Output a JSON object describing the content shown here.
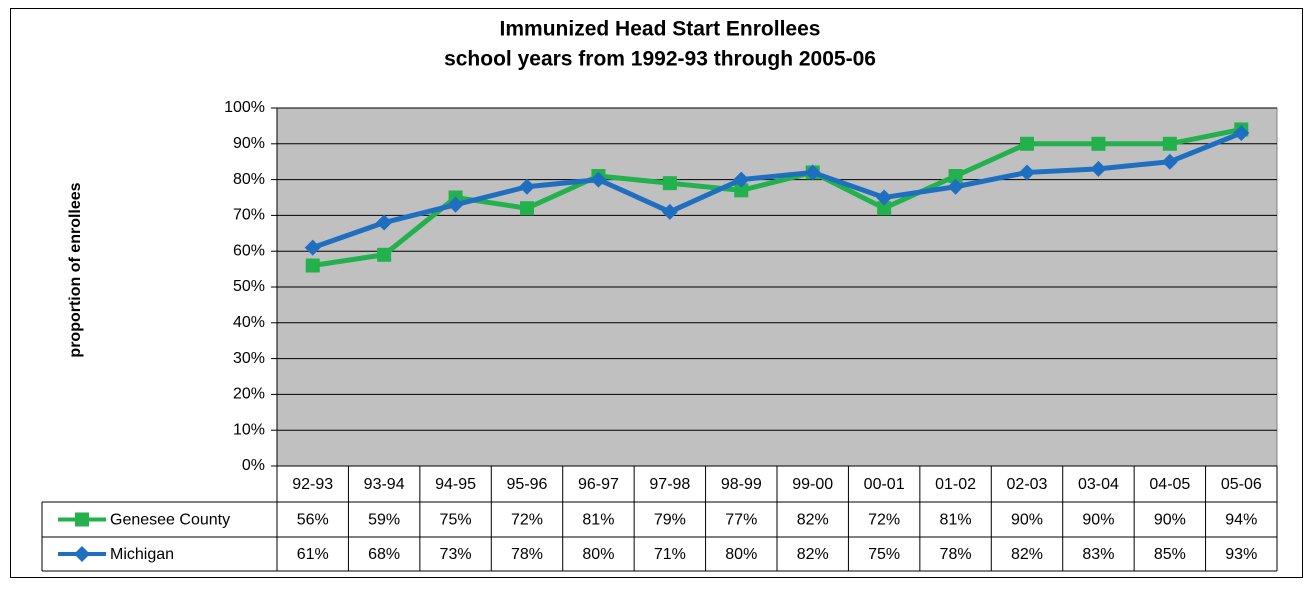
{
  "chart_data": {
    "type": "line",
    "title": "Immunized Head Start Enrollees",
    "subtitle": "school years from 1992-93 through 2005-06",
    "y_label": "proportion of enrollees",
    "categories": [
      "92-93",
      "93-94",
      "94-95",
      "95-96",
      "96-97",
      "97-98",
      "98-99",
      "99-00",
      "00-01",
      "01-02",
      "02-03",
      "03-04",
      "04-05",
      "05-06"
    ],
    "series": [
      {
        "name": "Genesee County",
        "color": "#22b14c",
        "marker": "square",
        "values": [
          56,
          59,
          75,
          72,
          81,
          79,
          77,
          82,
          72,
          81,
          90,
          90,
          90,
          94
        ],
        "value_labels": [
          "56%",
          "59%",
          "75%",
          "72%",
          "81%",
          "79%",
          "77%",
          "82%",
          "72%",
          "81%",
          "90%",
          "90%",
          "90%",
          "94%"
        ]
      },
      {
        "name": "Michigan",
        "color": "#1f6fc0",
        "marker": "diamond",
        "values": [
          61,
          68,
          73,
          78,
          80,
          71,
          80,
          82,
          75,
          78,
          82,
          83,
          85,
          93
        ],
        "value_labels": [
          "61%",
          "68%",
          "73%",
          "78%",
          "80%",
          "71%",
          "80%",
          "82%",
          "75%",
          "78%",
          "82%",
          "83%",
          "85%",
          "93%"
        ]
      }
    ],
    "ylim": [
      0,
      100
    ],
    "yticks": [
      {
        "value": 0,
        "label": "0%"
      },
      {
        "value": 10,
        "label": "10%"
      },
      {
        "value": 20,
        "label": "20%"
      },
      {
        "value": 30,
        "label": "30%"
      },
      {
        "value": 40,
        "label": "40%"
      },
      {
        "value": 50,
        "label": "50%"
      },
      {
        "value": 60,
        "label": "60%"
      },
      {
        "value": 70,
        "label": "70%"
      },
      {
        "value": 80,
        "label": "80%"
      },
      {
        "value": 90,
        "label": "90%"
      },
      {
        "value": 100,
        "label": "100%"
      }
    ],
    "grid": true,
    "plot_background": "#c0c0c0"
  }
}
